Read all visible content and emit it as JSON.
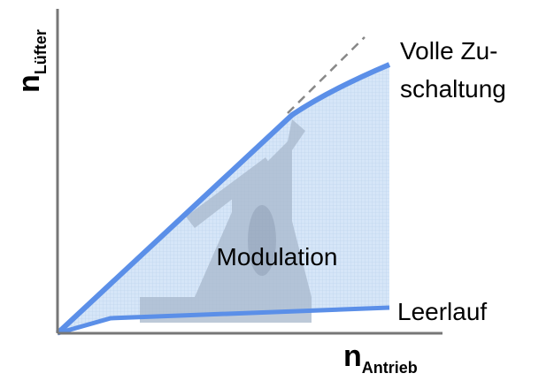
{
  "axes": {
    "x": {
      "label": {
        "main": "n",
        "sub": "Antrieb"
      }
    },
    "y": {
      "label": {
        "main": "n",
        "sub": "Lüfter"
      }
    }
  },
  "labels": {
    "full": [
      "Volle Zu-",
      "schaltung"
    ],
    "modulation": "Modulation",
    "idle": "Leerlauf"
  }
}
